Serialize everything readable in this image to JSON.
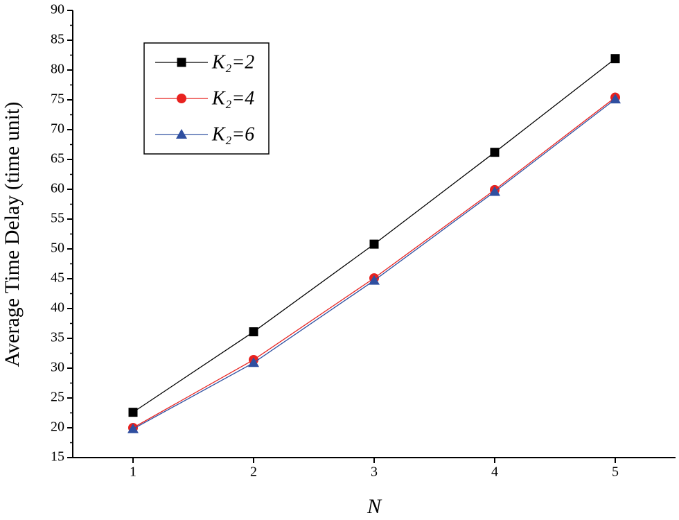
{
  "chart_data": {
    "type": "line",
    "x_label": "N",
    "y_label": "Average Time Delay (time unit)",
    "x": [
      1,
      2,
      3,
      4,
      5
    ],
    "xlim": [
      0.5,
      5.5
    ],
    "xticks": [
      1,
      2,
      3,
      4,
      5
    ],
    "ylim": [
      15,
      90
    ],
    "yticks": [
      15,
      20,
      25,
      30,
      35,
      40,
      45,
      50,
      55,
      60,
      65,
      70,
      75,
      80,
      85,
      90
    ],
    "legend": "upper left",
    "series": [
      {
        "name": "K₂=2",
        "color": "#000000",
        "marker": "square",
        "values": [
          22.6,
          36.1,
          50.8,
          66.2,
          81.9
        ]
      },
      {
        "name": "K₂=4",
        "color": "#e8221f",
        "marker": "circle",
        "values": [
          20.0,
          31.4,
          45.1,
          59.9,
          75.4
        ]
      },
      {
        "name": "K₂=6",
        "color": "#2f4fa0",
        "marker": "triangle",
        "values": [
          19.8,
          30.9,
          44.7,
          59.6,
          75.1
        ]
      }
    ]
  }
}
